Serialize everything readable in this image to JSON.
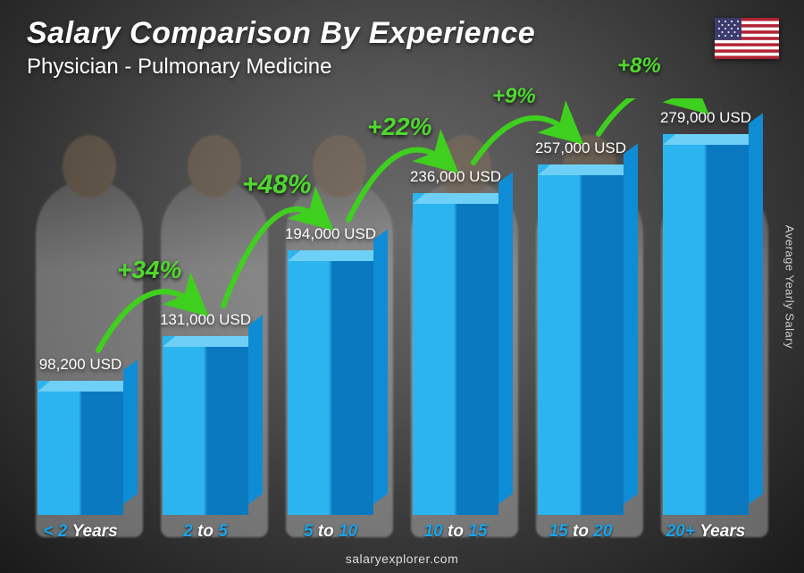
{
  "header": {
    "title": "Salary Comparison By Experience",
    "subtitle": "Physician - Pulmonary Medicine"
  },
  "flag": {
    "country": "USA"
  },
  "yaxis_label": "Average Yearly Salary",
  "footer": "salaryexplorer.com",
  "chart": {
    "type": "bar-3d",
    "max_value": 279000,
    "bar_colors": {
      "light": "#2cb4ef",
      "mid": "#0e8dd6",
      "dark": "#0a79c0",
      "top": "#6fd0f7"
    },
    "value_suffix": " USD",
    "pct_color": "#4fd82e",
    "arc_color": "#3fcf1e",
    "value_fontsize": 17,
    "xlabel_fontsize": 19,
    "xlabel_color": "#1aa3e8",
    "pct_fontsizes": [
      28,
      30,
      28,
      24,
      24
    ],
    "bars": [
      {
        "label_pre": "< 2",
        "label_mid": "",
        "label_post": "Years",
        "value": 98200,
        "value_label": "98,200 USD"
      },
      {
        "label_pre": "2",
        "label_mid": "to",
        "label_post": "5",
        "value": 131000,
        "value_label": "131,000 USD",
        "pct": "+34%"
      },
      {
        "label_pre": "5",
        "label_mid": "to",
        "label_post": "10",
        "value": 194000,
        "value_label": "194,000 USD",
        "pct": "+48%"
      },
      {
        "label_pre": "10",
        "label_mid": "to",
        "label_post": "15",
        "value": 236000,
        "value_label": "236,000 USD",
        "pct": "+22%"
      },
      {
        "label_pre": "15",
        "label_mid": "to",
        "label_post": "20",
        "value": 257000,
        "value_label": "257,000 USD",
        "pct": "+9%"
      },
      {
        "label_pre": "20+",
        "label_mid": "",
        "label_post": "Years",
        "value": 279000,
        "value_label": "279,000 USD",
        "pct": "+8%"
      }
    ]
  }
}
